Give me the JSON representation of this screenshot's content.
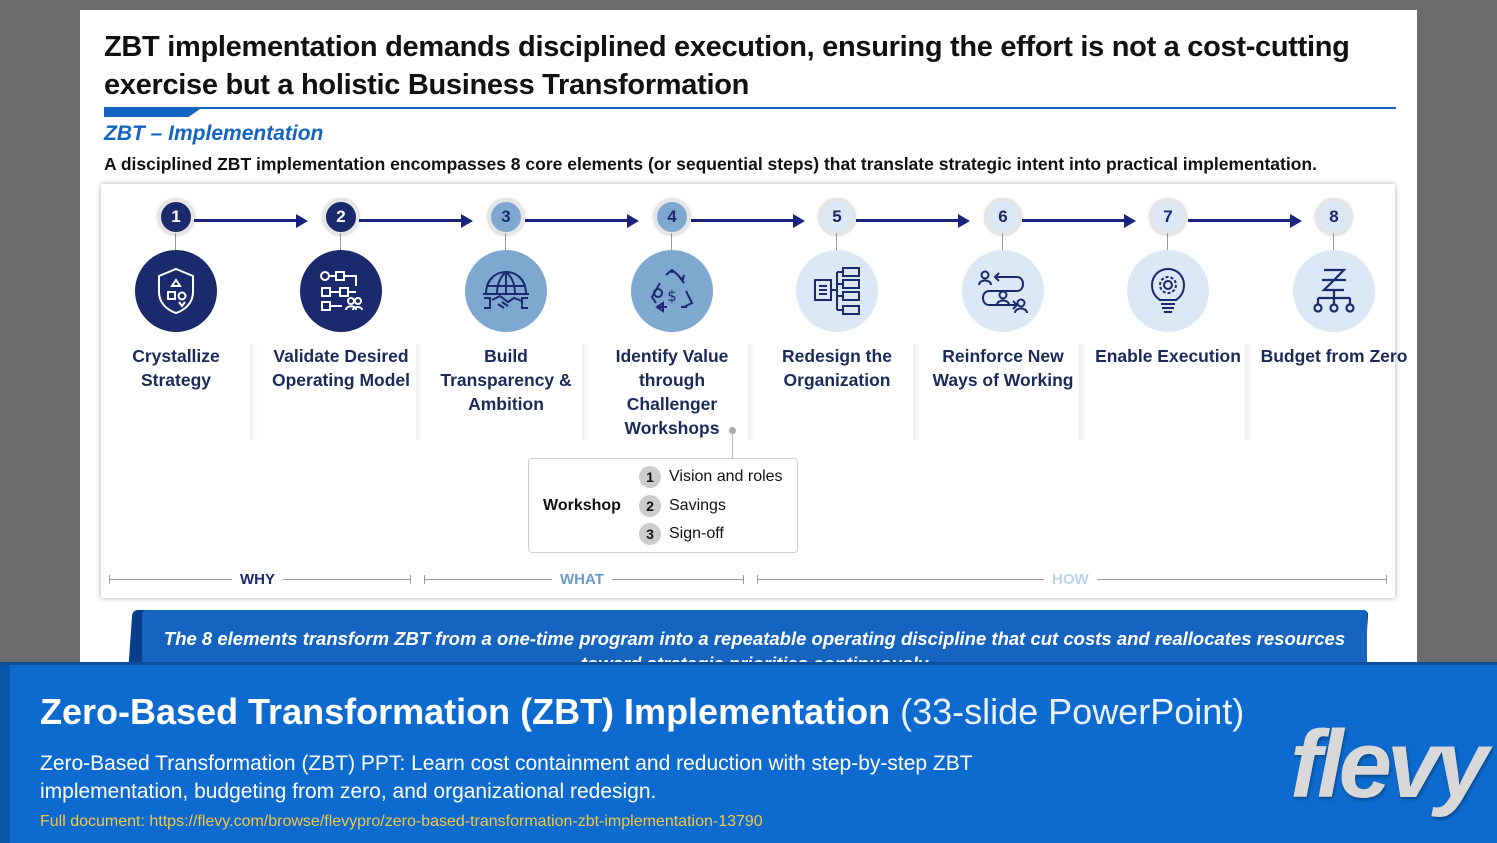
{
  "slide": {
    "title": "ZBT implementation demands disciplined execution, ensuring the effort is not a cost-cutting exercise but a holistic Business Transformation",
    "subtitle": "ZBT – Implementation",
    "description": "A disciplined ZBT implementation encompasses 8 core elements (or sequential steps) that translate strategic intent into practical implementation.",
    "steps": [
      {
        "number": "1",
        "label": "Crystallize Strategy",
        "icon": "shield-shapes-icon"
      },
      {
        "number": "2",
        "label": "Validate Desired Operating Model",
        "icon": "process-flow-icon"
      },
      {
        "number": "3",
        "label": "Build Transparency & Ambition",
        "icon": "globe-handshake-icon"
      },
      {
        "number": "4",
        "label": "Identify Value through Challenger Workshops",
        "icon": "recycle-dollar-icon"
      },
      {
        "number": "5",
        "label": "Redesign the Organization",
        "icon": "org-chart-icon"
      },
      {
        "number": "6",
        "label": "Reinforce New Ways of Working",
        "icon": "people-cycle-icon"
      },
      {
        "number": "7",
        "label": "Enable Execution",
        "icon": "lightbulb-gear-icon"
      },
      {
        "number": "8",
        "label": "Budget from Zero",
        "icon": "zero-hierarchy-icon"
      }
    ],
    "workshop": {
      "title": "Workshop",
      "items": [
        {
          "number": "1",
          "label": "Vision and roles"
        },
        {
          "number": "2",
          "label": "Savings"
        },
        {
          "number": "3",
          "label": "Sign-off"
        }
      ]
    },
    "phases": [
      "WHY",
      "WHAT",
      "HOW"
    ],
    "banner": "The 8 elements transform ZBT from a one-time program into a repeatable operating discipline that cut costs and reallocates resources toward strategic priorities continuously",
    "colors": {
      "navy": "#1a2a6c",
      "mid_blue": "#7fa8d1",
      "light_blue": "#dce8f5",
      "accent": "#1565c0"
    }
  },
  "footer": {
    "title_bold": "Zero-Based Transformation (ZBT) Implementation",
    "title_light": "(33-slide PowerPoint)",
    "description": "Zero-Based Transformation (ZBT) PPT: Learn cost containment and reduction with step-by-step ZBT implementation, budgeting from zero, and organizational redesign.",
    "link": "Full document: https://flevy.com/browse/flevypro/zero-based-transformation-zbt-implementation-13790",
    "logo": "flevy"
  }
}
